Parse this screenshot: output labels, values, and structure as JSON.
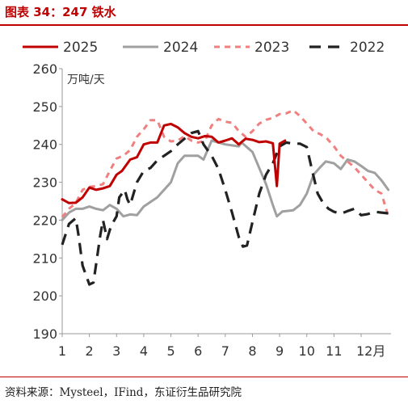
{
  "header": {
    "title": "图表 34：247 铁水"
  },
  "footer": {
    "source": "资料来源：Mysteel，IFind，东证衍生品研究院"
  },
  "chart_data": {
    "type": "line",
    "title": "",
    "unit_label": "万吨/天",
    "x_tick_labels": [
      "1",
      "2",
      "3",
      "4",
      "5",
      "6",
      "7",
      "8",
      "9",
      "10",
      "11",
      "12月"
    ],
    "xlim": [
      1,
      13.1
    ],
    "ylim": [
      190,
      260
    ],
    "y_ticks": [
      190,
      200,
      210,
      220,
      230,
      240,
      250,
      260
    ],
    "legend_position": "top",
    "grid": false,
    "series": [
      {
        "name": "2025",
        "color": "#c00000",
        "style": "solid",
        "points": [
          [
            1.0,
            225.5
          ],
          [
            1.25,
            224.5
          ],
          [
            1.5,
            224.6
          ],
          [
            1.75,
            226.0
          ],
          [
            2.0,
            228.6
          ],
          [
            2.25,
            228.0
          ],
          [
            2.5,
            228.4
          ],
          [
            2.75,
            229.0
          ],
          [
            3.0,
            232.0
          ],
          [
            3.2,
            233.0
          ],
          [
            3.5,
            236.0
          ],
          [
            3.75,
            236.6
          ],
          [
            4.0,
            240.0
          ],
          [
            4.25,
            240.5
          ],
          [
            4.5,
            240.5
          ],
          [
            4.75,
            245.0
          ],
          [
            5.0,
            245.4
          ],
          [
            5.25,
            244.5
          ],
          [
            5.5,
            243.0
          ],
          [
            5.75,
            242.0
          ],
          [
            6.0,
            241.6
          ],
          [
            6.25,
            242.2
          ],
          [
            6.5,
            242.0
          ],
          [
            6.75,
            240.5
          ],
          [
            7.0,
            241.0
          ],
          [
            7.25,
            241.6
          ],
          [
            7.5,
            240.0
          ],
          [
            7.75,
            241.5
          ],
          [
            8.0,
            241.2
          ],
          [
            8.25,
            240.6
          ],
          [
            8.5,
            240.8
          ],
          [
            8.75,
            240.3
          ],
          [
            8.9,
            229.0
          ],
          [
            9.0,
            240.2
          ],
          [
            9.2,
            241.0
          ]
        ]
      },
      {
        "name": "2024",
        "color": "#a0a0a0",
        "style": "solid",
        "points": [
          [
            1.0,
            220.0
          ],
          [
            1.25,
            222.0
          ],
          [
            1.5,
            223.0
          ],
          [
            1.75,
            223.0
          ],
          [
            2.0,
            223.6
          ],
          [
            2.25,
            223.0
          ],
          [
            2.5,
            222.6
          ],
          [
            2.75,
            224.0
          ],
          [
            3.0,
            223.0
          ],
          [
            3.25,
            221.0
          ],
          [
            3.5,
            221.5
          ],
          [
            3.75,
            221.3
          ],
          [
            4.0,
            223.6
          ],
          [
            4.5,
            226.0
          ],
          [
            5.0,
            230.0
          ],
          [
            5.25,
            235.0
          ],
          [
            5.5,
            237.0
          ],
          [
            5.75,
            237.0
          ],
          [
            6.0,
            237.0
          ],
          [
            6.2,
            236.0
          ],
          [
            6.5,
            241.0
          ],
          [
            7.0,
            240.0
          ],
          [
            7.5,
            239.5
          ],
          [
            7.6,
            240.5
          ],
          [
            8.0,
            238.0
          ],
          [
            8.5,
            229.5
          ],
          [
            8.75,
            224.0
          ],
          [
            8.9,
            221.0
          ],
          [
            9.1,
            222.3
          ],
          [
            9.5,
            222.6
          ],
          [
            9.75,
            224.0
          ],
          [
            10.0,
            227.0
          ],
          [
            10.25,
            232.0
          ],
          [
            10.5,
            234.0
          ],
          [
            10.7,
            235.5
          ],
          [
            11.0,
            235.0
          ],
          [
            11.25,
            233.5
          ],
          [
            11.5,
            236.0
          ],
          [
            11.75,
            235.5
          ],
          [
            12.0,
            234.3
          ],
          [
            12.25,
            233.0
          ],
          [
            12.5,
            232.5
          ],
          [
            12.75,
            230.5
          ],
          [
            13.0,
            228.0
          ]
        ]
      },
      {
        "name": "2023",
        "color": "#f08080",
        "style": "dashed",
        "points": [
          [
            1.0,
            220.8
          ],
          [
            1.25,
            223.0
          ],
          [
            1.5,
            224.5
          ],
          [
            1.75,
            228.0
          ],
          [
            2.0,
            228.8
          ],
          [
            2.25,
            229.0
          ],
          [
            2.5,
            229.5
          ],
          [
            2.75,
            233.0
          ],
          [
            3.0,
            236.3
          ],
          [
            3.25,
            237.0
          ],
          [
            3.5,
            238.5
          ],
          [
            3.75,
            242.0
          ],
          [
            4.0,
            244.0
          ],
          [
            4.25,
            246.4
          ],
          [
            4.5,
            246.4
          ],
          [
            4.75,
            242.0
          ],
          [
            5.0,
            240.8
          ],
          [
            5.25,
            241.0
          ],
          [
            5.5,
            242.2
          ],
          [
            5.75,
            241.0
          ],
          [
            6.0,
            240.5
          ],
          [
            6.25,
            241.0
          ],
          [
            6.5,
            245.0
          ],
          [
            6.75,
            246.7
          ],
          [
            7.0,
            246.0
          ],
          [
            7.25,
            245.7
          ],
          [
            7.5,
            243.5
          ],
          [
            7.75,
            242.0
          ],
          [
            8.0,
            243.5
          ],
          [
            8.25,
            245.5
          ],
          [
            8.5,
            246.5
          ],
          [
            8.75,
            247.0
          ],
          [
            9.0,
            248.0
          ],
          [
            9.25,
            248.2
          ],
          [
            9.5,
            249.0
          ],
          [
            9.75,
            247.5
          ],
          [
            10.0,
            245.5
          ],
          [
            10.25,
            243.5
          ],
          [
            10.5,
            242.7
          ],
          [
            10.75,
            241.5
          ],
          [
            11.0,
            239.5
          ],
          [
            11.25,
            237.0
          ],
          [
            11.5,
            235.5
          ],
          [
            11.75,
            234.0
          ],
          [
            12.0,
            232.0
          ],
          [
            12.25,
            230.0
          ],
          [
            12.5,
            228.0
          ],
          [
            12.75,
            227.0
          ],
          [
            13.0,
            221.0
          ]
        ]
      },
      {
        "name": "2022",
        "color": "#222222",
        "style": "dashed",
        "points": [
          [
            1.0,
            213.5
          ],
          [
            1.25,
            219.0
          ],
          [
            1.5,
            220.5
          ],
          [
            1.6,
            216.0
          ],
          [
            1.75,
            208.0
          ],
          [
            2.0,
            203.0
          ],
          [
            2.15,
            203.5
          ],
          [
            2.4,
            216.0
          ],
          [
            2.5,
            220.0
          ],
          [
            2.65,
            215.0
          ],
          [
            2.8,
            218.5
          ],
          [
            3.0,
            221.0
          ],
          [
            3.1,
            226.0
          ],
          [
            3.3,
            228.0
          ],
          [
            3.4,
            225.5
          ],
          [
            3.5,
            224.0
          ],
          [
            3.75,
            230.0
          ],
          [
            4.0,
            233.0
          ],
          [
            4.25,
            233.8
          ],
          [
            4.5,
            235.8
          ],
          [
            4.75,
            237.0
          ],
          [
            5.0,
            238.2
          ],
          [
            5.25,
            240.0
          ],
          [
            5.5,
            241.5
          ],
          [
            5.75,
            243.0
          ],
          [
            6.0,
            243.5
          ],
          [
            6.2,
            240.0
          ],
          [
            6.5,
            237.0
          ],
          [
            6.75,
            233.5
          ],
          [
            7.0,
            228.0
          ],
          [
            7.25,
            222.0
          ],
          [
            7.5,
            215.5
          ],
          [
            7.65,
            213.0
          ],
          [
            7.8,
            213.3
          ],
          [
            8.0,
            219.5
          ],
          [
            8.25,
            227.0
          ],
          [
            8.5,
            232.0
          ],
          [
            8.75,
            235.0
          ],
          [
            9.0,
            239.5
          ],
          [
            9.25,
            240.5
          ],
          [
            9.5,
            240.2
          ],
          [
            9.75,
            240.2
          ],
          [
            10.0,
            239.3
          ],
          [
            10.2,
            233.0
          ],
          [
            10.4,
            227.0
          ],
          [
            10.6,
            224.5
          ],
          [
            10.8,
            223.0
          ],
          [
            11.0,
            222.2
          ],
          [
            11.25,
            221.7
          ],
          [
            11.5,
            222.4
          ],
          [
            11.75,
            223.0
          ],
          [
            12.0,
            221.3
          ],
          [
            12.25,
            221.6
          ],
          [
            12.5,
            222.2
          ],
          [
            12.75,
            222.0
          ],
          [
            13.0,
            221.8
          ]
        ]
      }
    ]
  }
}
